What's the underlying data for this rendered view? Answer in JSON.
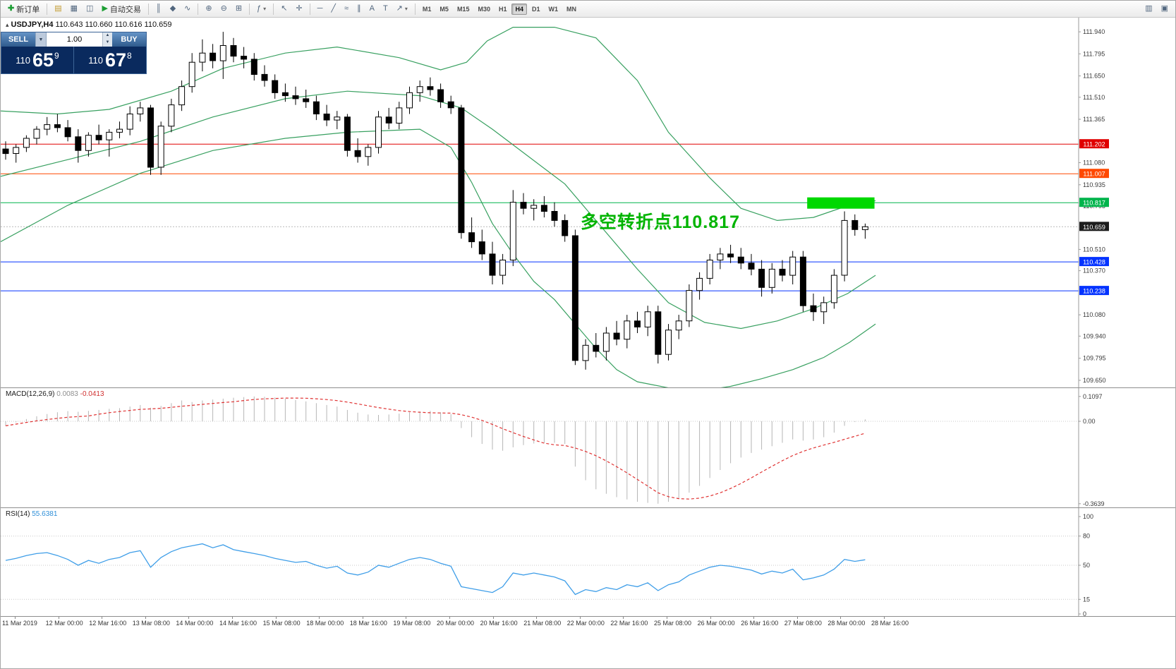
{
  "toolbar": {
    "new_order_label": "新订单",
    "autotrade_label": "自动交易",
    "timeframes": [
      "M1",
      "M5",
      "M15",
      "M30",
      "H1",
      "H4",
      "D1",
      "W1",
      "MN"
    ],
    "active_timeframe": "H4"
  },
  "icons": {
    "new_order": "✚",
    "profiles": "▤",
    "market_watch": "▦",
    "navigator": "◫",
    "autotrade_play": "▶",
    "chart_bars": "║",
    "chart_candles": "◆",
    "chart_line": "∿",
    "zoom_in": "⊕",
    "zoom_out": "⊖",
    "tile_windows": "⊞",
    "indicators": "ƒ",
    "cursor": "↖",
    "crosshair": "✛",
    "hline_tool": "─",
    "trendline_tool": "╱",
    "channel_tool": "∥",
    "fibo_tool": "≈",
    "text_tool": "A",
    "label_tool": "T",
    "arrow_tool": "↗",
    "dropdown": "▾",
    "printer": "▥",
    "fullscreen": "▣"
  },
  "symbol_info": {
    "symbol": "USDJPY,H4",
    "ohlc": "110.643 110.660 110.616 110.659"
  },
  "trade_panel": {
    "sell_label": "SELL",
    "buy_label": "BUY",
    "volume": "1.00",
    "sell_price": {
      "base": "110",
      "pips": "65",
      "sup": "9"
    },
    "buy_price": {
      "base": "110",
      "pips": "67",
      "sup": "8"
    }
  },
  "annotation": {
    "text": "多空转折点110.817",
    "color": "#00b400"
  },
  "chart_data": {
    "type": "candlestick",
    "symbol": "USDJPY",
    "timeframe": "H4",
    "price_axis": {
      "max": 112.033,
      "min": 109.603,
      "labels": [
        111.94,
        111.795,
        111.65,
        111.51,
        111.365,
        111.08,
        110.935,
        110.795,
        110.51,
        110.37,
        110.08,
        109.94,
        109.795,
        109.65
      ]
    },
    "time_labels": [
      "11 Mar 2019",
      "12 Mar 00:00",
      "12 Mar 16:00",
      "13 Mar 08:00",
      "14 Mar 00:00",
      "14 Mar 16:00",
      "15 Mar 08:00",
      "18 Mar 00:00",
      "18 Mar 16:00",
      "19 Mar 08:00",
      "20 Mar 00:00",
      "20 Mar 16:00",
      "21 Mar 08:00",
      "22 Mar 00:00",
      "22 Mar 16:00",
      "25 Mar 08:00",
      "26 Mar 00:00",
      "26 Mar 16:00",
      "27 Mar 08:00",
      "28 Mar 00:00",
      "28 Mar 16:00"
    ],
    "candles": [
      [
        111.17,
        111.22,
        111.1,
        111.14
      ],
      [
        111.14,
        111.2,
        111.08,
        111.18
      ],
      [
        111.18,
        111.26,
        111.15,
        111.24
      ],
      [
        111.24,
        111.32,
        111.2,
        111.3
      ],
      [
        111.3,
        111.38,
        111.26,
        111.33
      ],
      [
        111.33,
        111.4,
        111.28,
        111.31
      ],
      [
        111.31,
        111.36,
        111.22,
        111.25
      ],
      [
        111.25,
        111.3,
        111.08,
        111.16
      ],
      [
        111.16,
        111.28,
        111.12,
        111.26
      ],
      [
        111.26,
        111.33,
        111.2,
        111.23
      ],
      [
        111.23,
        111.3,
        111.12,
        111.28
      ],
      [
        111.28,
        111.35,
        111.24,
        111.3
      ],
      [
        111.3,
        111.45,
        111.26,
        111.4
      ],
      [
        111.4,
        111.48,
        111.35,
        111.44
      ],
      [
        111.44,
        111.46,
        111.0,
        111.05
      ],
      [
        111.05,
        111.35,
        111.0,
        111.32
      ],
      [
        111.32,
        111.5,
        111.28,
        111.46
      ],
      [
        111.46,
        111.62,
        111.42,
        111.58
      ],
      [
        111.58,
        111.8,
        111.54,
        111.74
      ],
      [
        111.74,
        111.89,
        111.68,
        111.8
      ],
      [
        111.8,
        111.86,
        111.7,
        111.75
      ],
      [
        111.75,
        111.94,
        111.63,
        111.85
      ],
      [
        111.85,
        111.9,
        111.74,
        111.78
      ],
      [
        111.78,
        111.84,
        111.7,
        111.76
      ],
      [
        111.76,
        111.8,
        111.62,
        111.66
      ],
      [
        111.66,
        111.72,
        111.58,
        111.62
      ],
      [
        111.62,
        111.66,
        111.5,
        111.54
      ],
      [
        111.54,
        111.6,
        111.48,
        111.52
      ],
      [
        111.52,
        111.58,
        111.46,
        111.5
      ],
      [
        111.5,
        111.56,
        111.44,
        111.48
      ],
      [
        111.48,
        111.52,
        111.36,
        111.4
      ],
      [
        111.4,
        111.46,
        111.32,
        111.36
      ],
      [
        111.36,
        111.42,
        111.3,
        111.38
      ],
      [
        111.38,
        111.4,
        111.12,
        111.16
      ],
      [
        111.16,
        111.24,
        111.08,
        111.12
      ],
      [
        111.12,
        111.2,
        111.06,
        111.18
      ],
      [
        111.18,
        111.42,
        111.14,
        111.38
      ],
      [
        111.38,
        111.44,
        111.3,
        111.34
      ],
      [
        111.34,
        111.48,
        111.3,
        111.44
      ],
      [
        111.44,
        111.58,
        111.4,
        111.54
      ],
      [
        111.54,
        111.62,
        111.48,
        111.58
      ],
      [
        111.58,
        111.64,
        111.52,
        111.56
      ],
      [
        111.56,
        111.6,
        111.44,
        111.48
      ],
      [
        111.48,
        111.52,
        111.4,
        111.44
      ],
      [
        111.44,
        111.46,
        110.58,
        110.62
      ],
      [
        110.62,
        110.72,
        110.52,
        110.56
      ],
      [
        110.56,
        110.64,
        110.44,
        110.48
      ],
      [
        110.48,
        110.56,
        110.28,
        110.34
      ],
      [
        110.34,
        110.48,
        110.28,
        110.44
      ],
      [
        110.44,
        110.9,
        110.4,
        110.82
      ],
      [
        110.82,
        110.88,
        110.74,
        110.78
      ],
      [
        110.78,
        110.84,
        110.7,
        110.8
      ],
      [
        110.8,
        110.86,
        110.72,
        110.76
      ],
      [
        110.76,
        110.82,
        110.66,
        110.7
      ],
      [
        110.7,
        110.74,
        110.56,
        110.6
      ],
      [
        110.6,
        110.64,
        109.75,
        109.78
      ],
      [
        109.78,
        109.92,
        109.72,
        109.88
      ],
      [
        109.88,
        109.96,
        109.8,
        109.84
      ],
      [
        109.84,
        110.0,
        109.78,
        109.96
      ],
      [
        109.96,
        110.04,
        109.88,
        109.92
      ],
      [
        109.92,
        110.08,
        109.86,
        110.04
      ],
      [
        110.04,
        110.1,
        109.96,
        110.0
      ],
      [
        110.0,
        110.14,
        109.94,
        110.1
      ],
      [
        110.1,
        110.14,
        109.76,
        109.82
      ],
      [
        109.82,
        110.02,
        109.78,
        109.98
      ],
      [
        109.98,
        110.08,
        109.92,
        110.04
      ],
      [
        110.04,
        110.28,
        110.0,
        110.24
      ],
      [
        110.24,
        110.36,
        110.18,
        110.32
      ],
      [
        110.32,
        110.48,
        110.28,
        110.44
      ],
      [
        110.44,
        110.52,
        110.38,
        110.48
      ],
      [
        110.48,
        110.54,
        110.42,
        110.46
      ],
      [
        110.46,
        110.52,
        110.38,
        110.42
      ],
      [
        110.42,
        110.48,
        110.34,
        110.38
      ],
      [
        110.38,
        110.44,
        110.2,
        110.26
      ],
      [
        110.26,
        110.42,
        110.22,
        110.38
      ],
      [
        110.38,
        110.44,
        110.3,
        110.34
      ],
      [
        110.34,
        110.5,
        110.28,
        110.46
      ],
      [
        110.46,
        110.5,
        110.1,
        110.14
      ],
      [
        110.14,
        110.22,
        110.04,
        110.1
      ],
      [
        110.1,
        110.2,
        110.02,
        110.16
      ],
      [
        110.16,
        110.38,
        110.12,
        110.34
      ],
      [
        110.34,
        110.76,
        110.3,
        110.7
      ],
      [
        110.7,
        110.74,
        110.6,
        110.64
      ],
      [
        110.64,
        110.68,
        110.58,
        110.659
      ]
    ],
    "bollinger": {
      "color": "#38a060",
      "upper": [
        [
          -0.5,
          111.42
        ],
        [
          5,
          111.4
        ],
        [
          10,
          111.43
        ],
        [
          16,
          111.55
        ],
        [
          21,
          111.7
        ],
        [
          27,
          111.8
        ],
        [
          32,
          111.84
        ],
        [
          38,
          111.77
        ],
        [
          42,
          111.69
        ],
        [
          44.5,
          111.74
        ],
        [
          46.5,
          111.88
        ],
        [
          49,
          111.97
        ],
        [
          53,
          111.97
        ],
        [
          57,
          111.9
        ],
        [
          61,
          111.62
        ],
        [
          64,
          111.28
        ],
        [
          68,
          110.98
        ],
        [
          71,
          110.78
        ],
        [
          74.5,
          110.7
        ],
        [
          78,
          110.72
        ],
        [
          81,
          110.79
        ],
        [
          84,
          110.83
        ]
      ],
      "middle": [
        [
          -0.5,
          110.99
        ],
        [
          6,
          111.1
        ],
        [
          13,
          111.22
        ],
        [
          20,
          111.38
        ],
        [
          27,
          111.5
        ],
        [
          33,
          111.55
        ],
        [
          40,
          111.52
        ],
        [
          44,
          111.44
        ],
        [
          47,
          111.3
        ],
        [
          50.5,
          111.12
        ],
        [
          54,
          110.94
        ],
        [
          57.5,
          110.66
        ],
        [
          61,
          110.38
        ],
        [
          64,
          110.16
        ],
        [
          67.5,
          110.03
        ],
        [
          71,
          109.99
        ],
        [
          74.5,
          110.04
        ],
        [
          78,
          110.12
        ],
        [
          81.3,
          110.22
        ],
        [
          84,
          110.34
        ]
      ],
      "lower": [
        [
          -0.5,
          110.56
        ],
        [
          6,
          110.8
        ],
        [
          13,
          111.01
        ],
        [
          20,
          111.16
        ],
        [
          27,
          111.24
        ],
        [
          33,
          111.28
        ],
        [
          40,
          111.3
        ],
        [
          43,
          111.18
        ],
        [
          45,
          110.95
        ],
        [
          47,
          110.68
        ],
        [
          49,
          110.48
        ],
        [
          51,
          110.3
        ],
        [
          53,
          110.18
        ],
        [
          55,
          110.02
        ],
        [
          57,
          109.86
        ],
        [
          59,
          109.72
        ],
        [
          61,
          109.64
        ],
        [
          64,
          109.6
        ],
        [
          67,
          109.58
        ],
        [
          70,
          109.61
        ],
        [
          73,
          109.66
        ],
        [
          76,
          109.72
        ],
        [
          79,
          109.8
        ],
        [
          81.5,
          109.9
        ],
        [
          84,
          110.02
        ]
      ]
    },
    "hlines": [
      {
        "price": 111.202,
        "color": "#e00000"
      },
      {
        "price": 111.007,
        "color": "#ff4800"
      },
      {
        "price": 110.817,
        "color": "#00b44c"
      },
      {
        "price": 110.428,
        "color": "#0433ff"
      },
      {
        "price": 110.238,
        "color": "#0433ff"
      }
    ],
    "current_price": {
      "bid": 110.659,
      "tag_color": "#1c1c1c"
    },
    "highlight_rect": {
      "bar_start": 77.4,
      "bar_end": 83.9,
      "price_top": 110.852,
      "price_bottom": 110.778,
      "color": "#00d800"
    },
    "macd": {
      "label": "MACD(12,26,9)",
      "value": "0.0083",
      "signal_value": "-0.0413",
      "scale_labels": [
        0.1097,
        0,
        -0.3639
      ],
      "histogram_color": "#b6b6b6",
      "signal_color": "#e03232",
      "histogram": [
        -0.02,
        -0.005,
        0.01,
        0.022,
        0.032,
        0.04,
        0.045,
        0.042,
        0.046,
        0.05,
        0.055,
        0.058,
        0.065,
        0.072,
        0.06,
        0.068,
        0.08,
        0.092,
        0.085,
        0.092,
        0.096,
        0.1,
        0.104,
        0.107,
        0.1097,
        0.108,
        0.105,
        0.1,
        0.094,
        0.088,
        0.08,
        0.072,
        0.065,
        0.05,
        0.038,
        0.03,
        0.028,
        0.03,
        0.034,
        0.04,
        0.044,
        0.046,
        0.04,
        0.032,
        -0.03,
        -0.07,
        -0.1,
        -0.125,
        -0.13,
        -0.115,
        -0.105,
        -0.098,
        -0.095,
        -0.095,
        -0.1,
        -0.2,
        -0.26,
        -0.3,
        -0.32,
        -0.335,
        -0.345,
        -0.355,
        -0.36,
        -0.3639,
        -0.355,
        -0.34,
        -0.315,
        -0.285,
        -0.25,
        -0.215,
        -0.185,
        -0.16,
        -0.14,
        -0.125,
        -0.11,
        -0.095,
        -0.08,
        -0.085,
        -0.08,
        -0.07,
        -0.05,
        -0.02,
        -0.003,
        0.0083
      ]
    },
    "rsi": {
      "label": "RSI(14)",
      "value": "55.6381",
      "line_color": "#3f9ee8",
      "scale_labels": [
        100,
        80,
        50,
        15,
        0
      ],
      "level_lines": [
        80,
        50,
        15
      ],
      "values": [
        55,
        57,
        60,
        62,
        63,
        60,
        56,
        50,
        55,
        52,
        56,
        58,
        63,
        65,
        48,
        58,
        64,
        68,
        70,
        72,
        68,
        71,
        66,
        64,
        62,
        60,
        57,
        55,
        53,
        54,
        50,
        47,
        49,
        42,
        40,
        43,
        50,
        48,
        52,
        56,
        58,
        56,
        52,
        49,
        28,
        26,
        24,
        22,
        28,
        42,
        40,
        42,
        40,
        38,
        34,
        20,
        25,
        23,
        27,
        25,
        30,
        28,
        32,
        24,
        30,
        33,
        40,
        44,
        48,
        50,
        49,
        47,
        45,
        41,
        44,
        42,
        46,
        35,
        37,
        40,
        46,
        56,
        54,
        55.64
      ]
    }
  }
}
